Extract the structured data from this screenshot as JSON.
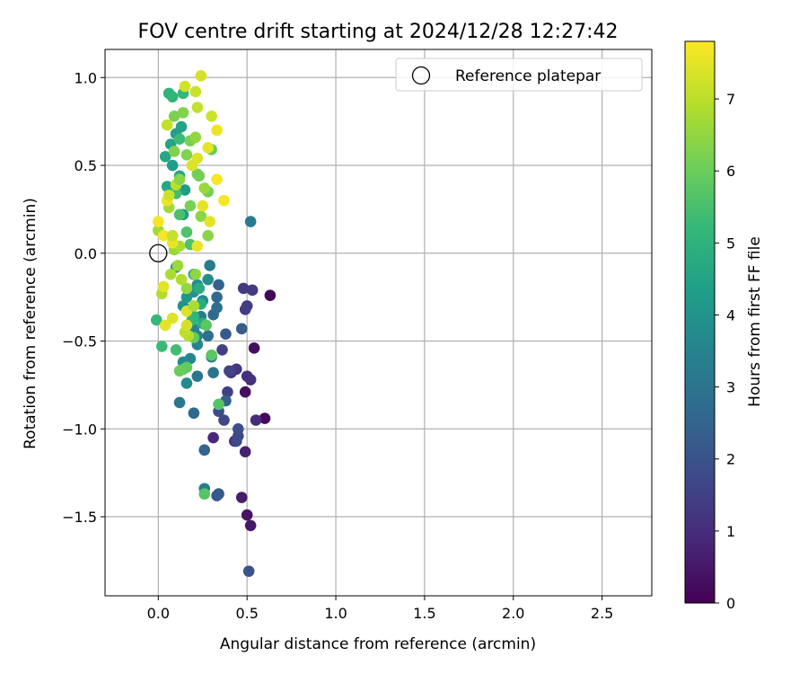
{
  "chart_data": {
    "type": "scatter",
    "title": "FOV centre drift starting at 2024/12/28 12:27:42",
    "xlabel": "Angular distance from reference (arcmin)",
    "ylabel": "Rotation from reference (arcmin)",
    "xlim": [
      -0.3,
      2.78
    ],
    "ylim": [
      -1.95,
      1.16
    ],
    "xticks": [
      "0.0",
      "0.5",
      "1.0",
      "1.5",
      "2.0",
      "2.5"
    ],
    "xtick_values": [
      0,
      0.5,
      1.0,
      1.5,
      2.0,
      2.5
    ],
    "yticks": [
      "1.0",
      "0.5",
      "0.0",
      "−0.5",
      "−1.0",
      "−1.5"
    ],
    "ytick_values": [
      1.0,
      0.5,
      0.0,
      -0.5,
      -1.0,
      -1.5
    ],
    "grid": true,
    "legend": {
      "position": "upper-right",
      "entries": [
        "Reference platepar"
      ]
    },
    "reference_point": {
      "x": 0.0,
      "y": 0.0,
      "label": "Reference platepar"
    },
    "colorbar": {
      "label": "Hours from first FF file",
      "range": [
        0,
        7.8
      ],
      "ticks": [
        "0",
        "1",
        "2",
        "3",
        "4",
        "5",
        "6",
        "7"
      ],
      "tick_values": [
        0,
        1,
        2,
        3,
        4,
        5,
        6,
        7
      ],
      "colormap": "viridis",
      "colormap_stops": [
        "#440154",
        "#482878",
        "#3e4989",
        "#31688e",
        "#26828e",
        "#1f9e89",
        "#35b779",
        "#6ece58",
        "#b5de2b",
        "#fde725"
      ]
    },
    "points": [
      [
        0.63,
        -0.24,
        0.1
      ],
      [
        0.6,
        -0.94,
        0.2
      ],
      [
        0.49,
        -0.79,
        0.3
      ],
      [
        0.54,
        -0.54,
        0.3
      ],
      [
        0.5,
        -1.49,
        0.4
      ],
      [
        0.52,
        -1.55,
        0.5
      ],
      [
        0.47,
        -1.39,
        0.6
      ],
      [
        0.49,
        -1.13,
        0.7
      ],
      [
        0.43,
        -1.07,
        0.8
      ],
      [
        0.31,
        -1.05,
        0.9
      ],
      [
        0.55,
        -0.95,
        1.0
      ],
      [
        0.5,
        -0.7,
        1.1
      ],
      [
        0.52,
        -0.72,
        1.1
      ],
      [
        0.41,
        -0.68,
        1.2
      ],
      [
        0.44,
        -0.66,
        1.2
      ],
      [
        0.48,
        -0.2,
        1.3
      ],
      [
        0.53,
        -0.21,
        1.3
      ],
      [
        0.49,
        -0.32,
        1.4
      ],
      [
        0.5,
        -0.3,
        1.4
      ],
      [
        0.36,
        -0.55,
        1.5
      ],
      [
        0.39,
        -0.79,
        1.5
      ],
      [
        0.4,
        -0.67,
        1.6
      ],
      [
        0.37,
        -0.95,
        1.7
      ],
      [
        0.45,
        -1.04,
        1.7
      ],
      [
        0.44,
        -1.07,
        1.8
      ],
      [
        0.34,
        -0.9,
        1.8
      ],
      [
        0.45,
        -1.0,
        1.9
      ],
      [
        0.51,
        -1.81,
        2.0
      ],
      [
        0.33,
        -1.38,
        2.1
      ],
      [
        0.34,
        -1.37,
        2.2
      ],
      [
        0.38,
        -0.46,
        2.2
      ],
      [
        0.47,
        -0.43,
        2.3
      ],
      [
        0.38,
        -0.84,
        2.4
      ],
      [
        0.26,
        -1.12,
        2.5
      ],
      [
        0.2,
        -0.91,
        2.6
      ],
      [
        0.34,
        -0.18,
        2.5
      ],
      [
        0.33,
        -0.25,
        2.6
      ],
      [
        0.31,
        -0.35,
        2.7
      ],
      [
        0.33,
        -0.31,
        2.8
      ],
      [
        0.28,
        -0.47,
        2.8
      ],
      [
        0.3,
        -0.59,
        2.9
      ],
      [
        0.31,
        -0.68,
        3.0
      ],
      [
        0.22,
        -0.7,
        3.0
      ],
      [
        0.12,
        -0.85,
        3.1
      ],
      [
        0.26,
        -1.34,
        3.2
      ],
      [
        0.52,
        0.18,
        3.2
      ],
      [
        0.29,
        -0.07,
        3.3
      ],
      [
        0.24,
        -0.36,
        3.3
      ],
      [
        0.22,
        -0.47,
        3.4
      ],
      [
        0.22,
        -0.52,
        3.5
      ],
      [
        0.2,
        -0.43,
        3.5
      ],
      [
        0.18,
        -0.6,
        3.6
      ],
      [
        0.14,
        -0.62,
        3.7
      ],
      [
        0.16,
        -0.74,
        3.7
      ],
      [
        0.25,
        -0.27,
        3.8
      ],
      [
        0.28,
        -0.15,
        3.8
      ],
      [
        0.22,
        -0.18,
        3.9
      ],
      [
        0.2,
        -0.22,
        3.9
      ],
      [
        0.14,
        -0.3,
        4.0
      ],
      [
        0.16,
        -0.25,
        4.1
      ],
      [
        0.1,
        -0.08,
        4.2
      ],
      [
        0.14,
        0.22,
        4.2
      ],
      [
        0.15,
        0.36,
        4.3
      ],
      [
        0.08,
        0.5,
        4.3
      ],
      [
        0.1,
        0.68,
        4.4
      ],
      [
        0.13,
        0.72,
        4.5
      ],
      [
        0.07,
        0.62,
        4.5
      ],
      [
        0.04,
        0.55,
        4.6
      ],
      [
        0.05,
        0.38,
        4.6
      ],
      [
        0.12,
        0.44,
        4.7
      ],
      [
        0.2,
        -0.12,
        4.7
      ],
      [
        0.23,
        -0.2,
        4.8
      ],
      [
        0.24,
        -0.29,
        4.8
      ],
      [
        0.25,
        -0.4,
        4.9
      ],
      [
        0.2,
        -0.36,
        5.0
      ],
      [
        0.19,
        -0.38,
        5.1
      ],
      [
        -0.01,
        -0.38,
        5.2
      ],
      [
        0.02,
        -0.53,
        5.3
      ],
      [
        0.1,
        -0.55,
        5.4
      ],
      [
        0.14,
        -0.66,
        5.5
      ],
      [
        0.06,
        0.91,
        5.0
      ],
      [
        0.08,
        0.89,
        5.1
      ],
      [
        0.14,
        0.91,
        5.2
      ],
      [
        0.12,
        0.65,
        5.3
      ],
      [
        0.1,
        0.34,
        5.4
      ],
      [
        0.12,
        0.22,
        5.5
      ],
      [
        0.16,
        0.12,
        5.6
      ],
      [
        0.18,
        0.05,
        5.6
      ],
      [
        0.26,
        -1.37,
        5.7
      ],
      [
        0.34,
        -0.86,
        5.7
      ],
      [
        0.3,
        -0.58,
        5.8
      ],
      [
        0.27,
        -0.41,
        5.8
      ],
      [
        0.2,
        -0.48,
        5.9
      ],
      [
        0.16,
        -0.65,
        5.9
      ],
      [
        0.12,
        -0.67,
        6.0
      ],
      [
        0.3,
        0.59,
        6.0
      ],
      [
        0.28,
        0.35,
        6.1
      ],
      [
        0.22,
        0.45,
        6.1
      ],
      [
        0.18,
        0.64,
        6.2
      ],
      [
        0.09,
        0.78,
        6.2
      ],
      [
        0.14,
        0.8,
        6.3
      ],
      [
        0.16,
        0.56,
        6.3
      ],
      [
        0.24,
        0.21,
        6.4
      ],
      [
        0.28,
        0.1,
        6.4
      ],
      [
        0.21,
        -0.12,
        6.5
      ],
      [
        0.16,
        -0.2,
        6.5
      ],
      [
        0.11,
        -0.07,
        6.6
      ],
      [
        0.09,
        0.02,
        6.6
      ],
      [
        0.0,
        0.13,
        6.7
      ],
      [
        0.06,
        0.26,
        6.7
      ],
      [
        0.12,
        0.04,
        6.8
      ],
      [
        0.07,
        -0.12,
        6.8
      ],
      [
        0.02,
        -0.23,
        6.9
      ],
      [
        0.17,
        -0.47,
        6.9
      ],
      [
        0.15,
        -0.45,
        7.0
      ],
      [
        0.1,
        0.39,
        7.0
      ],
      [
        0.05,
        0.73,
        7.1
      ],
      [
        0.22,
        0.83,
        7.1
      ],
      [
        0.3,
        0.78,
        7.2
      ],
      [
        0.21,
        0.92,
        7.2
      ],
      [
        0.15,
        0.95,
        7.3
      ],
      [
        0.24,
        1.01,
        7.3
      ],
      [
        0.22,
        0.54,
        7.4
      ],
      [
        0.19,
        0.5,
        7.4
      ],
      [
        0.25,
        0.27,
        7.5
      ],
      [
        0.29,
        0.18,
        7.5
      ],
      [
        0.22,
        0.04,
        7.6
      ],
      [
        0.08,
        0.06,
        7.6
      ],
      [
        0.03,
        0.1,
        7.7
      ],
      [
        0.0,
        0.18,
        7.7
      ],
      [
        0.05,
        0.3,
        7.6
      ],
      [
        0.03,
        -0.19,
        7.5
      ],
      [
        0.04,
        -0.41,
        7.5
      ],
      [
        0.08,
        -0.37,
        7.4
      ],
      [
        0.16,
        -0.33,
        7.4
      ],
      [
        0.16,
        -0.41,
        7.3
      ],
      [
        0.33,
        0.42,
        7.7
      ],
      [
        0.37,
        0.3,
        7.7
      ],
      [
        0.33,
        0.7,
        7.6
      ],
      [
        0.28,
        0.6,
        7.5
      ],
      [
        0.06,
        0.33,
        7.2
      ],
      [
        0.08,
        0.1,
        7.1
      ],
      [
        0.13,
        -0.15,
        6.9
      ],
      [
        0.2,
        -0.3,
        6.8
      ],
      [
        0.26,
        0.37,
        6.6
      ],
      [
        0.21,
        0.66,
        6.5
      ],
      [
        0.12,
        0.42,
        6.4
      ],
      [
        0.09,
        0.58,
        6.3
      ],
      [
        0.18,
        0.27,
        6.2
      ],
      [
        0.23,
        0.44,
        6.1
      ]
    ]
  }
}
